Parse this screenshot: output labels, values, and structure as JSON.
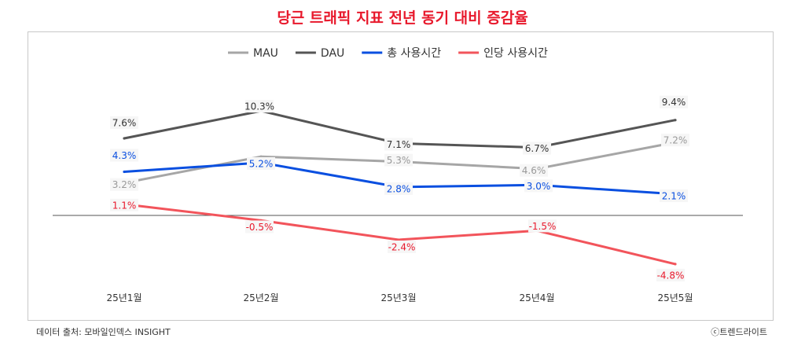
{
  "title": "당근 트래픽 지표 전년 동기 대비 증감율",
  "source": "데이터 출처: 모바일인덱스 INSIGHT",
  "copyright": "ⓒ트렌드라이트",
  "chart_data": {
    "type": "line",
    "categories": [
      "25년1월",
      "25년2월",
      "25년3월",
      "25년4월",
      "25년5월"
    ],
    "series": [
      {
        "name": "MAU",
        "color": "#a6a6a6",
        "values": [
          3.2,
          5.8,
          5.3,
          4.6,
          7.2
        ],
        "labels": [
          "3.2%",
          "",
          "5.3%",
          "4.6%",
          "7.2%"
        ]
      },
      {
        "name": "DAU",
        "color": "#555555",
        "values": [
          7.6,
          10.3,
          7.1,
          6.7,
          9.4
        ],
        "labels": [
          "7.6%",
          "10.3%",
          "7.1%",
          "6.7%",
          "9.4%"
        ]
      },
      {
        "name": "총 사용시간",
        "color": "#0a4fe0",
        "values": [
          4.3,
          5.2,
          2.8,
          3.0,
          2.1
        ],
        "labels": [
          "4.3%",
          "5.2%",
          "2.8%",
          "3.0%",
          "2.1%"
        ]
      },
      {
        "name": "인당 사용시간",
        "color": "#f2545b",
        "values": [
          1.1,
          -0.5,
          -2.4,
          -1.5,
          -4.8
        ],
        "labels": [
          "1.1%",
          "-0.5%",
          "-2.4%",
          "-1.5%",
          "-4.8%"
        ]
      }
    ],
    "ylim": [
      -7,
      14
    ],
    "legend": "top-center",
    "grid": false
  }
}
